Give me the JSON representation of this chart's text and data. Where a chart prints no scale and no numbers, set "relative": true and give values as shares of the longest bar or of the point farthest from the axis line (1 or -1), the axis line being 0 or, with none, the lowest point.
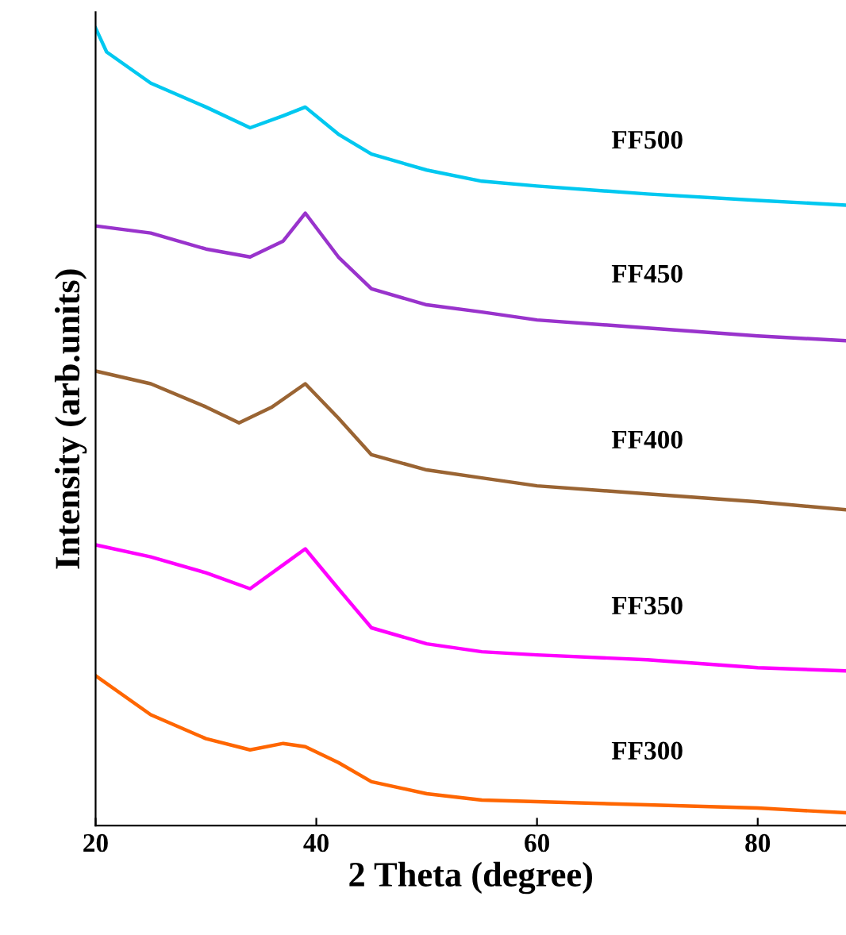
{
  "chart_data": {
    "type": "line",
    "xlabel": "2 Theta (degree)",
    "ylabel": "Intensity (arb.units)",
    "relative": true,
    "xlim": [
      20,
      88
    ],
    "xticks": [
      20,
      40,
      60,
      80
    ],
    "tick_labels": "x",
    "legend": false,
    "grid": false,
    "series": [
      {
        "name": "FF500",
        "color": "#00c8f0",
        "x": [
          20,
          21,
          25,
          30,
          34,
          37,
          39,
          42,
          45,
          50,
          55,
          60,
          70,
          80,
          88
        ],
        "values": [
          1.0,
          0.97,
          0.931,
          0.901,
          0.875,
          0.89,
          0.901,
          0.867,
          0.842,
          0.822,
          0.808,
          0.802,
          0.792,
          0.784,
          0.778
        ]
      },
      {
        "name": "FF450",
        "color": "#9933cc",
        "x": [
          20,
          25,
          30,
          34,
          37,
          39,
          42,
          45,
          50,
          55,
          60,
          70,
          80,
          88
        ],
        "values": [
          0.752,
          0.743,
          0.723,
          0.713,
          0.733,
          0.768,
          0.713,
          0.673,
          0.653,
          0.644,
          0.634,
          0.624,
          0.614,
          0.608
        ]
      },
      {
        "name": "FF400",
        "color": "#9a6433",
        "x": [
          20,
          25,
          30,
          33,
          36,
          39,
          42,
          45,
          50,
          55,
          60,
          70,
          80,
          88
        ],
        "values": [
          0.57,
          0.554,
          0.525,
          0.505,
          0.525,
          0.554,
          0.511,
          0.465,
          0.446,
          0.436,
          0.426,
          0.416,
          0.406,
          0.396
        ]
      },
      {
        "name": "FF350",
        "color": "#ff00ff",
        "x": [
          20,
          25,
          30,
          34,
          37,
          39,
          42,
          45,
          50,
          55,
          60,
          70,
          80,
          88
        ],
        "values": [
          0.352,
          0.337,
          0.317,
          0.297,
          0.327,
          0.347,
          0.297,
          0.248,
          0.228,
          0.218,
          0.214,
          0.208,
          0.198,
          0.194
        ]
      },
      {
        "name": "FF300",
        "color": "#ff6600",
        "x": [
          20,
          25,
          30,
          34,
          37,
          39,
          42,
          45,
          50,
          55,
          60,
          70,
          80,
          88
        ],
        "values": [
          0.188,
          0.139,
          0.109,
          0.095,
          0.103,
          0.099,
          0.079,
          0.055,
          0.04,
          0.032,
          0.03,
          0.026,
          0.022,
          0.016
        ]
      }
    ]
  }
}
